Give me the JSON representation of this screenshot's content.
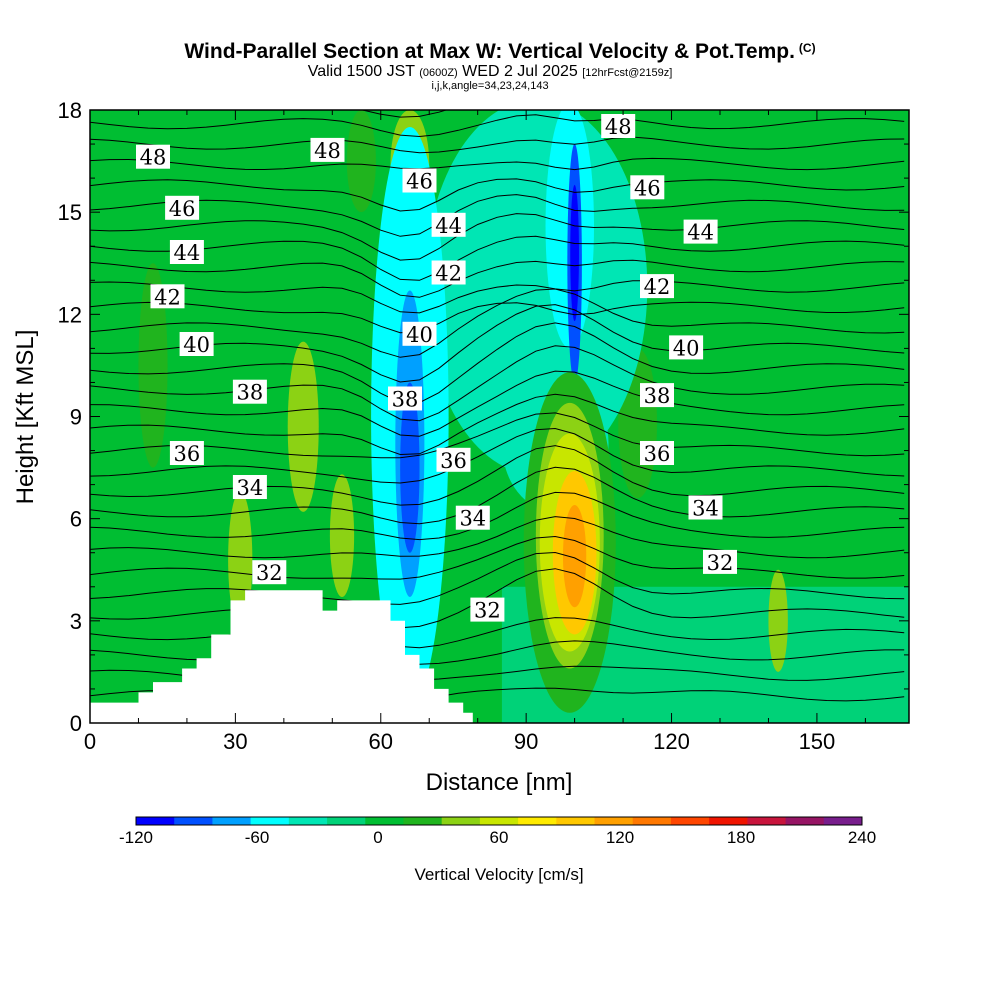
{
  "title": {
    "main": "Wind-Parallel Section at Max W: Vertical Velocity & Pot.Temp.",
    "copyright": "(C)",
    "valid_prefix": "Valid 1500 JST",
    "valid_utc": "(0600Z)",
    "valid_date": "WED 2 Jul 2025",
    "forecast": "[12hrFcst@2159z]",
    "indices": "i,j,k,angle=34,23,24,143"
  },
  "chart_data": {
    "type": "heatmap",
    "xlabel": "Distance [nm]",
    "ylabel": "Height [Kft MSL]",
    "xlim": [
      0,
      169
    ],
    "ylim": [
      0,
      18
    ],
    "x_ticks": [
      "0",
      "30",
      "60",
      "90",
      "120",
      "150"
    ],
    "y_ticks": [
      "0",
      "3",
      "6",
      "9",
      "12",
      "15",
      "18"
    ],
    "colorbar": {
      "title": "Vertical Velocity [cm/s]",
      "tick_labels": [
        "-120",
        "-60",
        "0",
        "60",
        "120",
        "180",
        "240"
      ],
      "levels": [
        -120,
        -100,
        -80,
        -60,
        -40,
        -20,
        0,
        20,
        40,
        60,
        80,
        100,
        120,
        140,
        160,
        180,
        200,
        220,
        240
      ],
      "colors": [
        "#0000ff",
        "#0050ff",
        "#00a0ff",
        "#00ffff",
        "#00e6b4",
        "#00d278",
        "#00be32",
        "#20b41e",
        "#8cd214",
        "#c8e600",
        "#ffeb00",
        "#ffc800",
        "#ffa000",
        "#ff7800",
        "#ff4600",
        "#f01400",
        "#c8143c",
        "#961464",
        "#781e8c"
      ]
    },
    "velocity_features": [
      {
        "name": "strong updraft core",
        "distance_nm": 100,
        "height_kft": 5,
        "max_cm_s": 120
      },
      {
        "name": "upper downdraft core",
        "distance_nm": 100,
        "height_kft": 14,
        "min_cm_s": -120
      },
      {
        "name": "mid-level downdraft core",
        "distance_nm": 66,
        "height_kft": 7.5,
        "min_cm_s": -100
      }
    ],
    "theta_contours": {
      "units": "pot. temp. labels",
      "levels": [
        32,
        34,
        36,
        38,
        40,
        42,
        44,
        46,
        48
      ],
      "labels": [
        {
          "text": "48",
          "x": 13,
          "y": 16.6
        },
        {
          "text": "48",
          "x": 49,
          "y": 16.8
        },
        {
          "text": "48",
          "x": 109,
          "y": 17.5
        },
        {
          "text": "46",
          "x": 68,
          "y": 15.9
        },
        {
          "text": "46",
          "x": 19,
          "y": 15.1
        },
        {
          "text": "46",
          "x": 115,
          "y": 15.7
        },
        {
          "text": "44",
          "x": 20,
          "y": 13.8
        },
        {
          "text": "44",
          "x": 74,
          "y": 14.6
        },
        {
          "text": "44",
          "x": 126,
          "y": 14.4
        },
        {
          "text": "42",
          "x": 16,
          "y": 12.5
        },
        {
          "text": "42",
          "x": 74,
          "y": 13.2
        },
        {
          "text": "42",
          "x": 117,
          "y": 12.8
        },
        {
          "text": "40",
          "x": 22,
          "y": 11.1
        },
        {
          "text": "40",
          "x": 68,
          "y": 11.4
        },
        {
          "text": "40",
          "x": 123,
          "y": 11.0
        },
        {
          "text": "38",
          "x": 33,
          "y": 9.7
        },
        {
          "text": "38",
          "x": 65,
          "y": 9.5
        },
        {
          "text": "38",
          "x": 117,
          "y": 9.6
        },
        {
          "text": "36",
          "x": 20,
          "y": 7.9
        },
        {
          "text": "36",
          "x": 75,
          "y": 7.7
        },
        {
          "text": "36",
          "x": 117,
          "y": 7.9
        },
        {
          "text": "34",
          "x": 33,
          "y": 6.9
        },
        {
          "text": "34",
          "x": 79,
          "y": 6.0
        },
        {
          "text": "34",
          "x": 127,
          "y": 6.3
        },
        {
          "text": "32",
          "x": 37,
          "y": 4.4
        },
        {
          "text": "32",
          "x": 82,
          "y": 3.3
        },
        {
          "text": "32",
          "x": 130,
          "y": 4.7
        }
      ]
    },
    "terrain_profile_kft": [
      [
        0,
        0.6
      ],
      [
        10,
        0.6
      ],
      [
        10,
        0.9
      ],
      [
        13,
        0.9
      ],
      [
        13,
        1.2
      ],
      [
        19,
        1.2
      ],
      [
        19,
        1.6
      ],
      [
        22,
        1.6
      ],
      [
        22,
        1.9
      ],
      [
        25,
        1.9
      ],
      [
        25,
        2.6
      ],
      [
        29,
        2.6
      ],
      [
        29,
        3.6
      ],
      [
        32,
        3.6
      ],
      [
        32,
        3.9
      ],
      [
        48,
        3.9
      ],
      [
        48,
        3.3
      ],
      [
        51,
        3.3
      ],
      [
        51,
        3.6
      ],
      [
        62,
        3.6
      ],
      [
        62,
        3.0
      ],
      [
        65,
        3.0
      ],
      [
        65,
        2.0
      ],
      [
        68,
        2.0
      ],
      [
        68,
        1.6
      ],
      [
        71,
        1.6
      ],
      [
        71,
        1.0
      ],
      [
        74,
        1.0
      ],
      [
        74,
        0.6
      ],
      [
        77,
        0.6
      ],
      [
        77,
        0.3
      ],
      [
        79,
        0.3
      ],
      [
        79,
        0
      ]
    ]
  }
}
